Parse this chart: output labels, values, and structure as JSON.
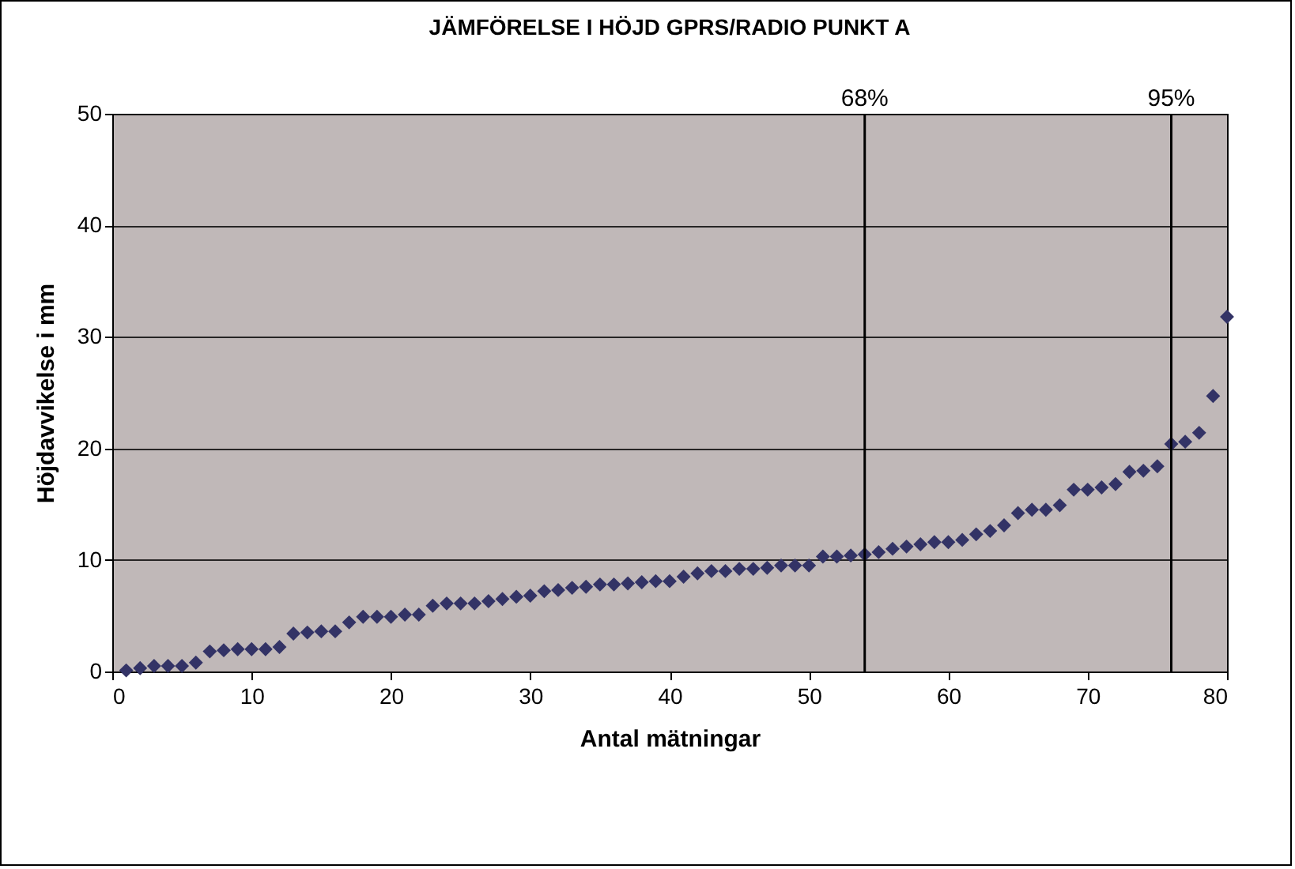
{
  "chart_data": {
    "type": "scatter",
    "title": "JÄMFÖRELSE I HÖJD GPRS/RADIO PUNKT A",
    "xlabel": "Antal mätningar",
    "ylabel": "Höjdavvikelse i mm",
    "x": [
      1,
      2,
      3,
      4,
      5,
      6,
      7,
      8,
      9,
      10,
      11,
      12,
      13,
      14,
      15,
      16,
      17,
      18,
      19,
      20,
      21,
      22,
      23,
      24,
      25,
      26,
      27,
      28,
      29,
      30,
      31,
      32,
      33,
      34,
      35,
      36,
      37,
      38,
      39,
      40,
      41,
      42,
      43,
      44,
      45,
      46,
      47,
      48,
      49,
      50,
      51,
      52,
      53,
      54,
      55,
      56,
      57,
      58,
      59,
      60,
      61,
      62,
      63,
      64,
      65,
      66,
      67,
      68,
      69,
      70,
      71,
      72,
      73,
      74,
      75,
      76,
      77,
      78,
      79,
      80
    ],
    "series": [
      {
        "color": "#333366",
        "values": [
          0.1,
          0.3,
          0.5,
          0.5,
          0.5,
          0.8,
          1.8,
          1.9,
          2.0,
          2.0,
          2.0,
          2.2,
          3.4,
          3.5,
          3.6,
          3.6,
          4.4,
          4.9,
          4.9,
          4.9,
          5.1,
          5.1,
          5.9,
          6.1,
          6.1,
          6.1,
          6.3,
          6.5,
          6.7,
          6.8,
          7.2,
          7.3,
          7.5,
          7.6,
          7.8,
          7.8,
          7.9,
          8.0,
          8.1,
          8.1,
          8.5,
          8.8,
          9.0,
          9.0,
          9.2,
          9.2,
          9.3,
          9.5,
          9.5,
          9.5,
          10.3,
          10.3,
          10.4,
          10.5,
          10.7,
          11.0,
          11.2,
          11.4,
          11.6,
          11.6,
          11.8,
          12.3,
          12.6,
          13.1,
          14.2,
          14.5,
          14.5,
          14.9,
          16.3,
          16.3,
          16.5,
          16.8,
          17.9,
          18.0,
          18.4,
          20.4,
          20.6,
          21.4,
          24.7,
          31.8
        ]
      }
    ],
    "xlim": [
      0,
      80
    ],
    "xticks": [
      0,
      10,
      20,
      30,
      40,
      50,
      60,
      70,
      80
    ],
    "ylim": [
      0,
      50
    ],
    "yticks": [
      0,
      10,
      20,
      30,
      40,
      50
    ],
    "ref_lines": [
      {
        "axis": "x",
        "value": 54,
        "color": "#000000"
      },
      {
        "axis": "x",
        "value": 76,
        "color": "#000000"
      }
    ],
    "annotations": [
      {
        "text": "68%",
        "x": 54,
        "y": 50
      },
      {
        "text": "95%",
        "x": 76,
        "y": 50
      }
    ],
    "grid": "y",
    "legend": false,
    "marker": "diamond"
  }
}
